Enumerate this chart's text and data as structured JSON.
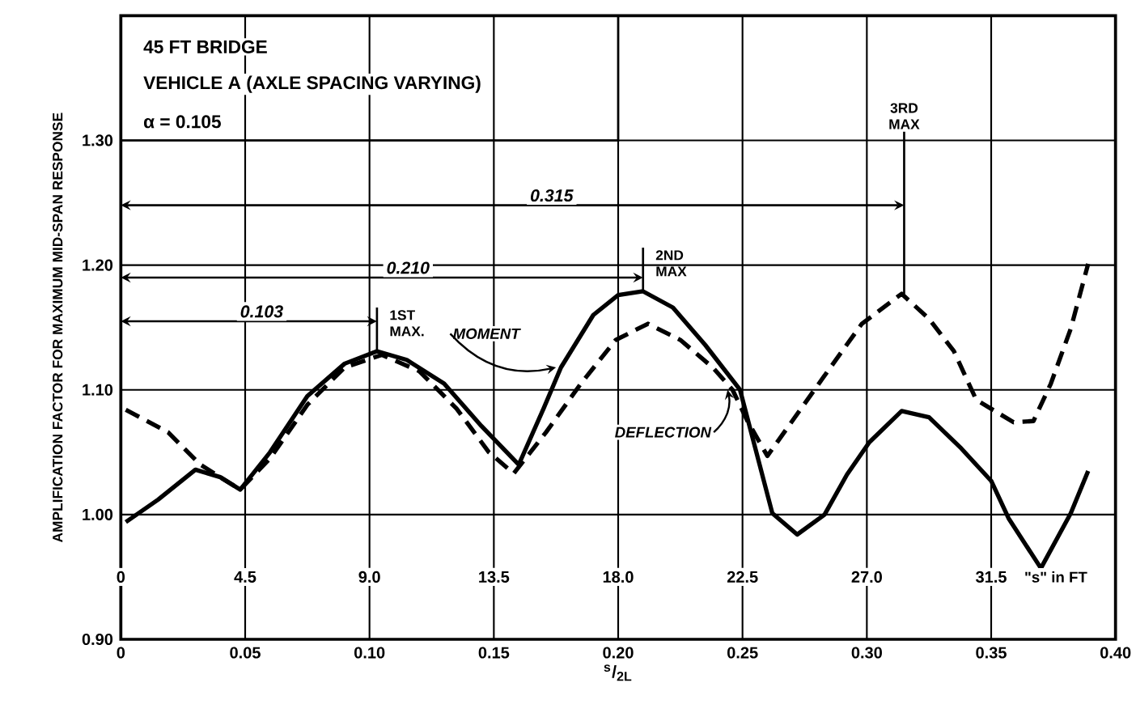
{
  "chart_data": {
    "type": "line",
    "title": "45 FT BRIDGE",
    "subtitle": "VEHICLE A (AXLE SPACING VARYING)",
    "xlabel": "$^{s}$/$_{2L}$",
    "ylabel": "AMPLIFICATION FACTOR FOR MAXIMUM MID-SPAN RESPONSE",
    "x2lim": [
      0,
      36
    ],
    "x2ticks": [
      0,
      4.5,
      {
        "value": 9,
        "label": "9.0"
      },
      13.5,
      {
        "value": 18,
        "label": "18.0"
      },
      22.5,
      {
        "value": 27,
        "label": "27.0"
      },
      31.5
    ],
    "x2label": "\"s\" in FT",
    "xlim": [
      0,
      0.4
    ],
    "xticks": [
      0,
      0.05,
      {
        "value": 0.1,
        "label": "0.10"
      },
      0.15,
      {
        "value": 0.2,
        "label": "0.20"
      },
      0.25,
      {
        "value": 0.3,
        "label": "0.30"
      },
      0.35,
      {
        "value": 0.4,
        "label": "0.40"
      }
    ],
    "ylim": [
      0.9,
      1.4
    ],
    "yticks": [
      {
        "value": 0.9,
        "label": "0.90"
      },
      {
        "value": 1.0,
        "label": "1.00"
      },
      {
        "value": 1.1,
        "label": "1.10"
      },
      {
        "value": 1.2,
        "label": "1.20"
      },
      {
        "value": 1.3,
        "label": "1.30"
      }
    ],
    "grid": true,
    "series": [
      {
        "name": "MOMENT",
        "color": "#000000",
        "line_style": "solid",
        "x": [
          0.002,
          0.015,
          0.03,
          0.04,
          0.048,
          0.06,
          0.075,
          0.09,
          0.103,
          0.115,
          0.13,
          0.145,
          0.16,
          0.17,
          0.177,
          0.19,
          0.2,
          0.21,
          0.222,
          0.235,
          0.249,
          0.262,
          0.272,
          0.283,
          0.292,
          0.301,
          0.314,
          0.325,
          0.338,
          0.35,
          0.357,
          0.37,
          0.382,
          0.389
        ],
        "values": [
          0.994,
          1.012,
          1.036,
          1.03,
          1.02,
          1.05,
          1.095,
          1.121,
          1.131,
          1.124,
          1.105,
          1.071,
          1.04,
          1.085,
          1.118,
          1.16,
          1.176,
          1.179,
          1.166,
          1.136,
          1.1,
          1.001,
          0.984,
          1.0,
          1.032,
          1.058,
          1.083,
          1.078,
          1.053,
          1.027,
          0.997,
          0.957,
          1.001,
          1.035
        ]
      },
      {
        "name": "DEFLECTION",
        "color": "#000000",
        "line_style": "dashed",
        "x": [
          0.002,
          0.019,
          0.032,
          0.048,
          0.06,
          0.075,
          0.09,
          0.105,
          0.12,
          0.135,
          0.148,
          0.158,
          0.171,
          0.185,
          0.199,
          0.212,
          0.225,
          0.238,
          0.246,
          0.252,
          0.26,
          0.27,
          0.285,
          0.298,
          0.314,
          0.325,
          0.335,
          0.344,
          0.359,
          0.367,
          0.374,
          0.382,
          0.389
        ],
        "values": [
          1.084,
          1.066,
          1.04,
          1.02,
          1.045,
          1.088,
          1.118,
          1.128,
          1.115,
          1.085,
          1.05,
          1.033,
          1.066,
          1.105,
          1.14,
          1.153,
          1.14,
          1.118,
          1.1,
          1.075,
          1.047,
          1.075,
          1.117,
          1.153,
          1.177,
          1.157,
          1.131,
          1.092,
          1.074,
          1.075,
          1.105,
          1.149,
          1.201
        ]
      }
    ],
    "annotations": [
      "α = 0.105",
      "0.103",
      "0.210",
      "0.315",
      {
        "text": "1ST MAX.",
        "x": 0.103,
        "y": 1.131
      },
      {
        "text": "2ND MAX",
        "x": 0.21,
        "y": 1.179
      },
      {
        "text": "3RD MAX",
        "x": 0.315,
        "y": 1.177
      }
    ]
  }
}
